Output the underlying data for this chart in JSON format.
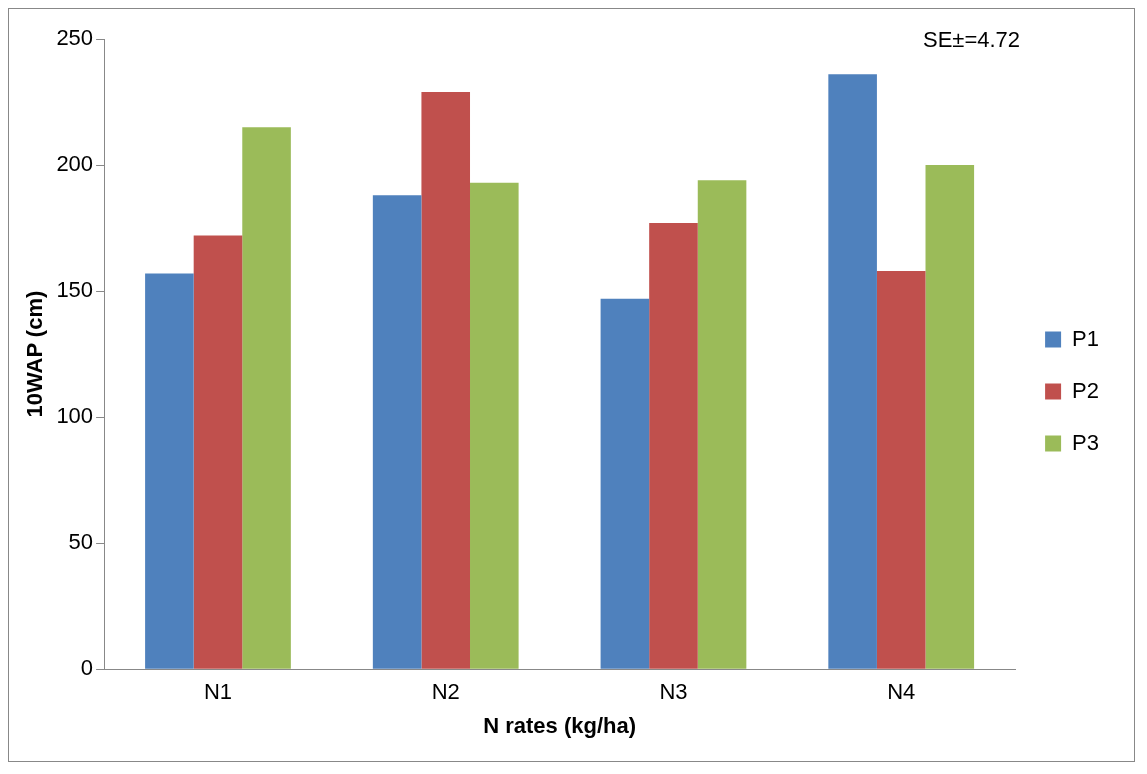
{
  "chart_data": {
    "type": "bar",
    "xlabel": "N rates (kg/ha)",
    "ylabel": "10WAP (cm)",
    "categories": [
      "N1",
      "N2",
      "N3",
      "N4"
    ],
    "series": [
      {
        "name": "P1",
        "color": "#4f81bd",
        "values": [
          157,
          188,
          147,
          236
        ]
      },
      {
        "name": "P2",
        "color": "#c0504d",
        "values": [
          172,
          229,
          177,
          158
        ]
      },
      {
        "name": "P3",
        "color": "#9bbb59",
        "values": [
          215,
          193,
          194,
          200
        ]
      }
    ],
    "ylim": [
      0,
      250
    ],
    "yticks": [
      0,
      50,
      100,
      150,
      200,
      250
    ],
    "grid": false,
    "legend": "right",
    "annotations": [
      "SE±=4.72"
    ]
  }
}
